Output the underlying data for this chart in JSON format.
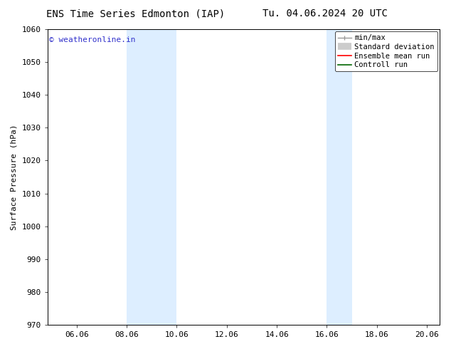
{
  "title_left": "ENS Time Series Edmonton (IAP)",
  "title_right": "Tu. 04.06.2024 20 UTC",
  "ylabel": "Surface Pressure (hPa)",
  "ylim": [
    970,
    1060
  ],
  "yticks": [
    970,
    980,
    990,
    1000,
    1010,
    1020,
    1030,
    1040,
    1050,
    1060
  ],
  "xlim_start": 4.833,
  "xlim_end": 20.5,
  "xtick_labels": [
    "06.06",
    "08.06",
    "10.06",
    "12.06",
    "14.06",
    "16.06",
    "18.06",
    "20.06"
  ],
  "xtick_positions": [
    6.0,
    8.0,
    10.0,
    12.0,
    14.0,
    16.0,
    18.0,
    20.0
  ],
  "shaded_bands": [
    {
      "xmin": 8.0,
      "xmax": 10.0,
      "color": "#ddeeff"
    },
    {
      "xmin": 16.0,
      "xmax": 17.0,
      "color": "#ddeeff"
    }
  ],
  "watermark_text": "© weatheronline.in",
  "watermark_color": "#3333cc",
  "watermark_fontsize": 8,
  "legend_entries": [
    {
      "label": "min/max"
    },
    {
      "label": "Standard deviation"
    },
    {
      "label": "Ensemble mean run"
    },
    {
      "label": "Controll run"
    }
  ],
  "bg_color": "#ffffff",
  "plot_bg_color": "#ffffff",
  "title_fontsize": 10,
  "axis_fontsize": 8,
  "tick_fontsize": 8,
  "legend_fontsize": 7.5
}
